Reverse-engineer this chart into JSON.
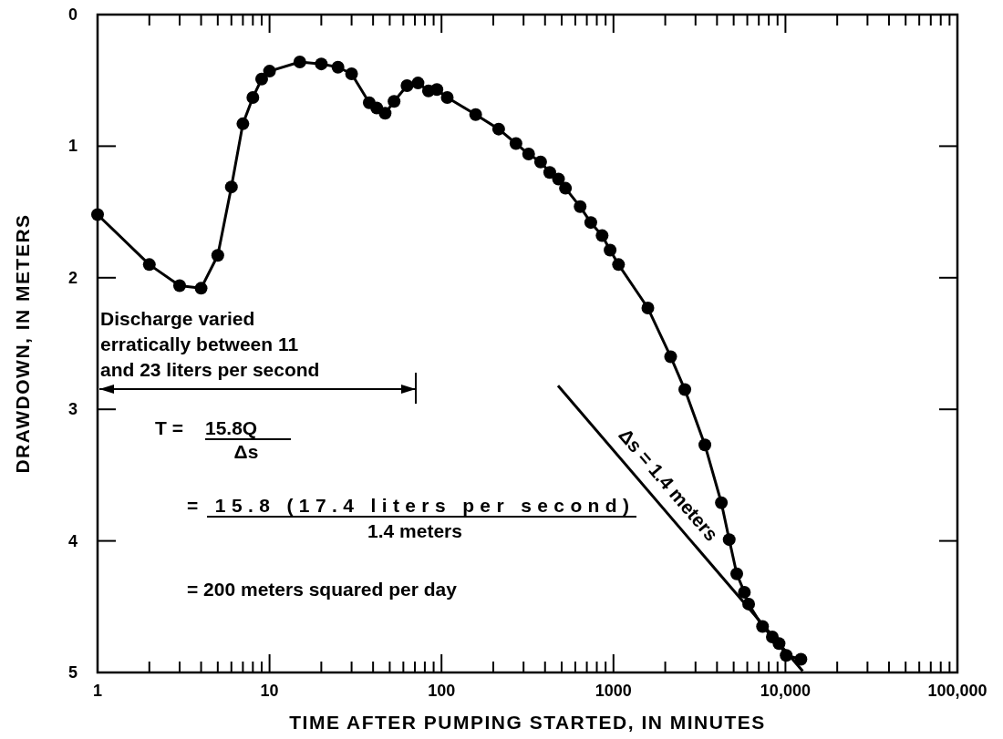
{
  "chart_data": {
    "type": "line",
    "xlabel": "TIME AFTER PUMPING STARTED, IN MINUTES",
    "ylabel": "DRAWDOWN, IN METERS",
    "log": "x",
    "marker": "circle",
    "line_style": "solid",
    "grid": false,
    "xlim": [
      1,
      100000
    ],
    "ylim": [
      5,
      0
    ],
    "xticks": [
      1,
      10,
      100,
      1000,
      {
        "value": 10000,
        "label": "10,000"
      },
      {
        "value": 100000,
        "label": "100,000"
      },
      {
        "value": 2,
        "label": null
      },
      {
        "value": 3,
        "label": null
      },
      {
        "value": 4,
        "label": null
      },
      {
        "value": 5,
        "label": null
      },
      {
        "value": 6,
        "label": null
      },
      {
        "value": 7,
        "label": null
      },
      {
        "value": 8,
        "label": null
      },
      {
        "value": 9,
        "label": null
      },
      {
        "value": 20,
        "label": null
      },
      {
        "value": 30,
        "label": null
      },
      {
        "value": 40,
        "label": null
      },
      {
        "value": 50,
        "label": null
      },
      {
        "value": 60,
        "label": null
      },
      {
        "value": 70,
        "label": null
      },
      {
        "value": 80,
        "label": null
      },
      {
        "value": 90,
        "label": null
      },
      {
        "value": 200,
        "label": null
      },
      {
        "value": 300,
        "label": null
      },
      {
        "value": 400,
        "label": null
      },
      {
        "value": 500,
        "label": null
      },
      {
        "value": 600,
        "label": null
      },
      {
        "value": 700,
        "label": null
      },
      {
        "value": 800,
        "label": null
      },
      {
        "value": 900,
        "label": null
      },
      {
        "value": 2000,
        "label": null
      },
      {
        "value": 3000,
        "label": null
      },
      {
        "value": 4000,
        "label": null
      },
      {
        "value": 5000,
        "label": null
      },
      {
        "value": 6000,
        "label": null
      },
      {
        "value": 7000,
        "label": null
      },
      {
        "value": 8000,
        "label": null
      },
      {
        "value": 9000,
        "label": null
      },
      {
        "value": 20000,
        "label": null
      },
      {
        "value": 30000,
        "label": null
      },
      {
        "value": 40000,
        "label": null
      },
      {
        "value": 50000,
        "label": null
      },
      {
        "value": 60000,
        "label": null
      },
      {
        "value": 70000,
        "label": null
      },
      {
        "value": 80000,
        "label": null
      },
      {
        "value": 90000,
        "label": null
      }
    ],
    "yticks": [
      0,
      1,
      2,
      3,
      4,
      5
    ],
    "series": [
      {
        "color": "#000000",
        "x": [
          1,
          2,
          3,
          4,
          5,
          6,
          7,
          8,
          9,
          10,
          15,
          20,
          25,
          30,
          38,
          42,
          47,
          53,
          63,
          73,
          84,
          94,
          108,
          158,
          215,
          271,
          321,
          377,
          426,
          479,
          526,
          640,
          738,
          859,
          956,
          1070,
          1585,
          2150,
          2600,
          3400,
          4240,
          4710,
          5210,
          5770,
          6110,
          7360,
          8390,
          9180,
          10100,
          12300
        ],
        "values": [
          1.52,
          1.9,
          2.06,
          2.08,
          1.83,
          1.31,
          0.83,
          0.63,
          0.49,
          0.43,
          0.36,
          0.375,
          0.4,
          0.45,
          0.67,
          0.71,
          0.75,
          0.66,
          0.54,
          0.52,
          0.58,
          0.57,
          0.63,
          0.76,
          0.87,
          0.98,
          1.06,
          1.12,
          1.2,
          1.25,
          1.32,
          1.46,
          1.58,
          1.68,
          1.79,
          1.9,
          2.23,
          2.6,
          2.85,
          3.27,
          3.71,
          3.99,
          4.25,
          4.39,
          4.48,
          4.65,
          4.73,
          4.78,
          4.87,
          4.9
        ]
      },
      {
        "type": "line",
        "marker": "none",
        "color": "#000000",
        "x": [
          476,
          12600
        ],
        "values": [
          2.82,
          4.99
        ]
      }
    ],
    "annotations": [
      "Discharge varied\nerratically between 11\nand 23 liters per second",
      "T =",
      "15.8Q",
      "Δs",
      "= 15.8 (17.4 liters per second)",
      "1.4 meters",
      "= 200 meters squared per day",
      "Δs = 1.4 meters"
    ]
  }
}
